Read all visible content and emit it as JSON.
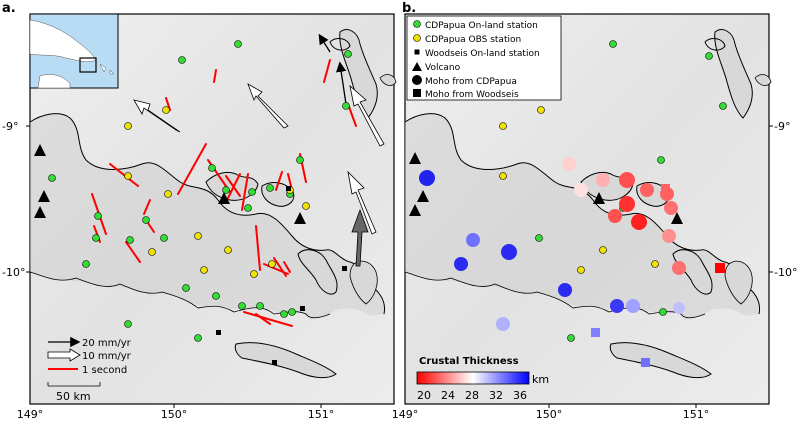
{
  "panels": {
    "a": {
      "label": "a."
    },
    "b": {
      "label": "b."
    }
  },
  "axes": {
    "x_ticks": [
      "149°",
      "150°",
      "151°",
      "149°",
      "150°",
      "151°"
    ],
    "y_ticks_left": [
      "-9°",
      "-10°"
    ],
    "y_ticks_right": [
      "-9°",
      "-10°"
    ]
  },
  "legend_a": {
    "items": [
      {
        "label": "20 mm/yr",
        "symbol": "black-arrow"
      },
      {
        "label": "10 mm/yr",
        "symbol": "white-arrow"
      },
      {
        "label": "1 second",
        "symbol": "red-line"
      }
    ],
    "scale_bar": "50 km"
  },
  "legend_b": {
    "items": [
      {
        "label": "CDPapua On-land station",
        "symbol": "green-circle"
      },
      {
        "label": "CDPapua OBS station",
        "symbol": "yellow-circle"
      },
      {
        "label": "Woodseis On-land station",
        "symbol": "black-small-square"
      },
      {
        "label": "Volcano",
        "symbol": "black-triangle"
      },
      {
        "label": "Moho from CDPapua",
        "symbol": "black-circle"
      },
      {
        "label": "Moho from Woodseis",
        "symbol": "black-square"
      }
    ]
  },
  "colorbar": {
    "title": "Crustal Thickness",
    "unit": "km",
    "ticks": [
      "20",
      "24",
      "28",
      "32",
      "36"
    ],
    "colors": [
      "#ff0000",
      "#ff8080",
      "#ffffff",
      "#8080ff",
      "#0000ff"
    ]
  },
  "colors": {
    "green_station": "#33dd33",
    "yellow_station": "#f2e200",
    "fast_axis": "#ff0000",
    "sea_shade": "#e6e6e6",
    "inset_sea": "#b9dcf5"
  }
}
